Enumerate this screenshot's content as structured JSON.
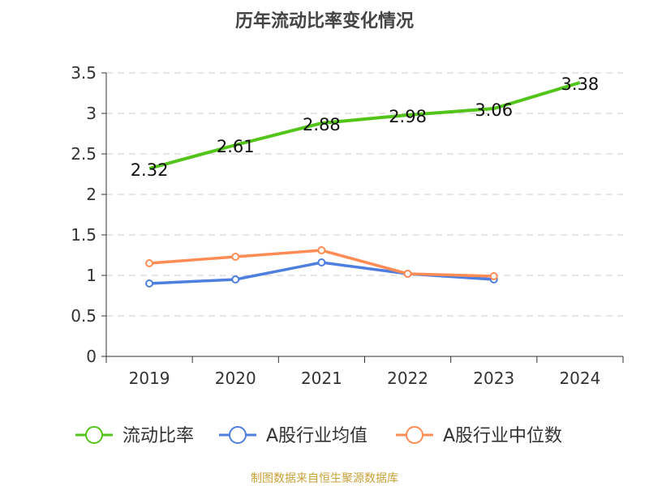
{
  "chart_data": {
    "type": "line",
    "title": "历年流动比率变化情况",
    "categories": [
      "2019",
      "2020",
      "2021",
      "2022",
      "2023",
      "2024"
    ],
    "ylim": [
      0,
      3.5
    ],
    "yticks": [
      "0",
      "0.5",
      "1",
      "1.5",
      "2",
      "2.5",
      "3",
      "3.5"
    ],
    "grid": true,
    "legend_position": "bottom",
    "series": [
      {
        "name": "流动比率",
        "color": "#52c41a",
        "values": [
          2.32,
          2.61,
          2.88,
          2.98,
          3.06,
          3.38
        ],
        "labels": [
          "2.32",
          "2.61",
          "2.88",
          "2.98",
          "3.06",
          "3.38"
        ]
      },
      {
        "name": "A股行业均值",
        "color": "#4e7fe0",
        "values": [
          0.9,
          0.95,
          1.16,
          1.02,
          0.95,
          null
        ]
      },
      {
        "name": "A股行业中位数",
        "color": "#ff8c55",
        "values": [
          1.15,
          1.23,
          1.31,
          1.02,
          0.99,
          null
        ]
      }
    ]
  },
  "source": "制图数据来自恒生聚源数据库"
}
